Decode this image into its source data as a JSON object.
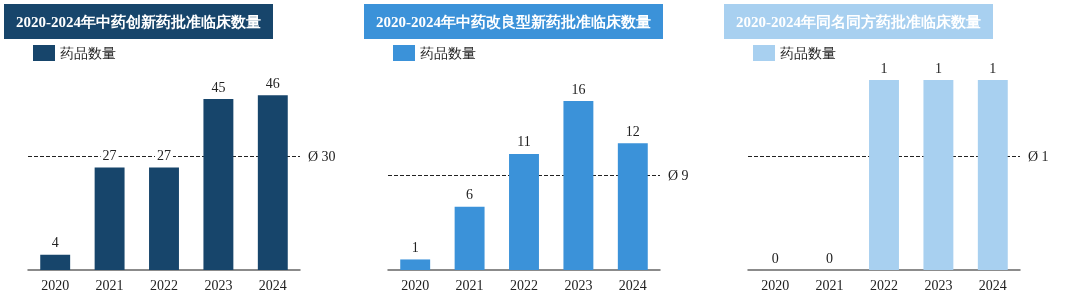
{
  "chart_data": [
    {
      "type": "bar",
      "title": "2020-2024年中药创新药批准临床数量",
      "categories": [
        "2020",
        "2021",
        "2022",
        "2023",
        "2024"
      ],
      "series": [
        {
          "name": "药品数量",
          "color": "#17456b",
          "values": [
            4,
            27,
            27,
            45,
            46
          ]
        }
      ],
      "data_labels": true,
      "legend": "top left",
      "ref_lines": [
        {
          "axis": "y",
          "value": 30,
          "label": "Ø 30",
          "line_style": "dashed"
        }
      ]
    },
    {
      "type": "bar",
      "title": "2020-2024年中药改良型新药批准临床数量",
      "categories": [
        "2020",
        "2021",
        "2022",
        "2023",
        "2024"
      ],
      "series": [
        {
          "name": "药品数量",
          "color": "#3b92d9",
          "values": [
            1,
            6,
            11,
            16,
            12
          ]
        }
      ],
      "data_labels": true,
      "legend": "top left",
      "ref_lines": [
        {
          "axis": "y",
          "value": 9,
          "label": "Ø 9",
          "line_style": "dashed"
        }
      ]
    },
    {
      "type": "bar",
      "title": "2020-2024年同名同方药批准临床数量",
      "categories": [
        "2020",
        "2021",
        "2022",
        "2023",
        "2024"
      ],
      "series": [
        {
          "name": "药品数量",
          "color": "#a8d0f0",
          "values": [
            0,
            0,
            1,
            1,
            1
          ]
        }
      ],
      "data_labels": true,
      "legend": "top left",
      "ref_lines": [
        {
          "axis": "y",
          "value": 0.6,
          "label": "Ø 1",
          "line_style": "dashed"
        }
      ]
    }
  ]
}
